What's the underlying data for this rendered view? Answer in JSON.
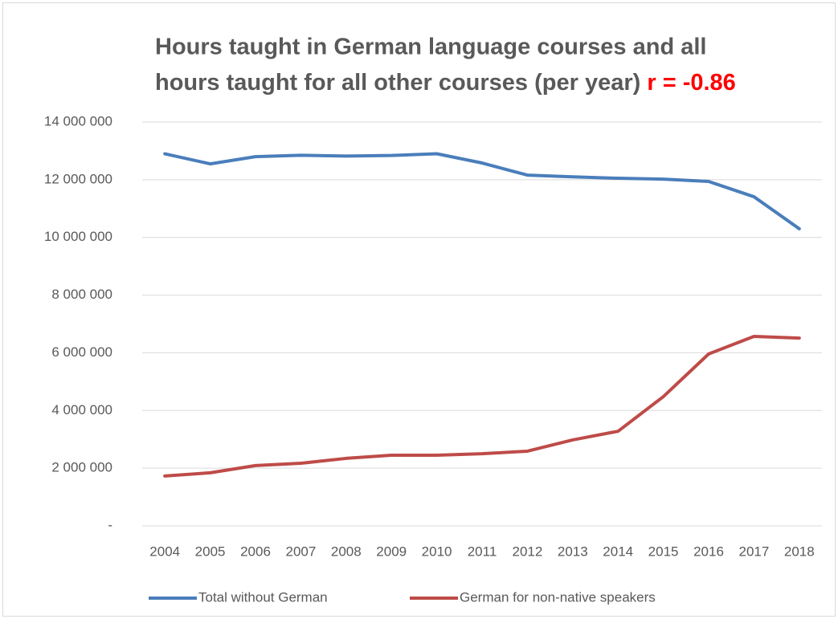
{
  "chart_data": {
    "type": "line",
    "title": [
      "Hours taught in German language courses  and all",
      "hours taught for all other courses (per year)"
    ],
    "annotation": "r = -0.86",
    "categories": [
      "2004",
      "2005",
      "2006",
      "2007",
      "2008",
      "2009",
      "2010",
      "2011",
      "2012",
      "2013",
      "2014",
      "2015",
      "2016",
      "2017",
      "2018"
    ],
    "series": [
      {
        "name": "Total without German",
        "color": "#4a7ebb",
        "values": [
          12900000,
          12550000,
          12800000,
          12850000,
          12820000,
          12840000,
          12900000,
          12580000,
          12160000,
          12100000,
          12050000,
          12020000,
          11940000,
          11410000,
          10300000
        ]
      },
      {
        "name": "German for non-native speakers",
        "color": "#be4b48",
        "values": [
          1730000,
          1840000,
          2090000,
          2170000,
          2340000,
          2450000,
          2450000,
          2500000,
          2590000,
          2980000,
          3280000,
          4480000,
          5960000,
          6570000,
          6510000
        ]
      }
    ],
    "ylim": [
      0,
      14000000
    ],
    "yticks": [
      {
        "value": 0,
        "label": "-"
      },
      {
        "value": 2000000,
        "label": "2 000 000"
      },
      {
        "value": 4000000,
        "label": "4 000 000"
      },
      {
        "value": 6000000,
        "label": "6 000 000"
      },
      {
        "value": 8000000,
        "label": "8 000 000"
      },
      {
        "value": 10000000,
        "label": "10 000 000"
      },
      {
        "value": 12000000,
        "label": "12 000 000"
      },
      {
        "value": 14000000,
        "label": "14 000 000"
      }
    ],
    "grid": true,
    "legend": "bottom"
  }
}
